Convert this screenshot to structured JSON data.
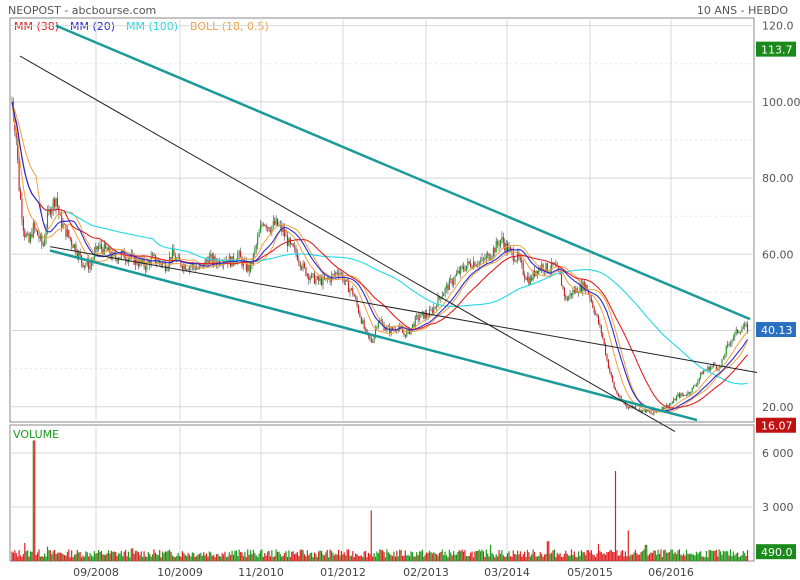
{
  "header": {
    "source": "NEOPOST - abcbourse.com",
    "period": "10 ANS - HEBDO"
  },
  "indicators": [
    {
      "label": "MM (38)",
      "color": "#e02020"
    },
    {
      "label": "MM (20)",
      "color": "#2a2ad0"
    },
    {
      "label": "MM (100)",
      "color": "#22d8e8"
    },
    {
      "label": "BOLL (18, 0.5)",
      "color": "#f0a040"
    }
  ],
  "badges": {
    "high": {
      "value": "113.7",
      "color": "#1a8a1a"
    },
    "last": {
      "value": "40.13",
      "color": "#2a70c0"
    },
    "low": {
      "value": "16.07",
      "color": "#c01010"
    },
    "volume": {
      "value": "490.0",
      "color": "#1a8a1a"
    }
  },
  "chart_data": [
    {
      "type": "candlestick",
      "title": "NEOPOST",
      "y_ticks": [
        "20.00",
        "40.00",
        "60.00",
        "80.00",
        "100.00",
        "120.0"
      ],
      "ylim": [
        16,
        122
      ],
      "x_ticks": [
        "09/2008",
        "10/2009",
        "11/2010",
        "01/2012",
        "02/2013",
        "03/2014",
        "05/2015",
        "06/2016"
      ],
      "grid": true,
      "anchors": [
        [
          0,
          107
        ],
        [
          6,
          113.7
        ],
        [
          11,
          102
        ],
        [
          16,
          92
        ],
        [
          19,
          78
        ],
        [
          24,
          66
        ],
        [
          29,
          63
        ],
        [
          33,
          67
        ],
        [
          38,
          65
        ],
        [
          43,
          62
        ],
        [
          47,
          69
        ],
        [
          50,
          72
        ],
        [
          56,
          75
        ],
        [
          60,
          69
        ],
        [
          64,
          67
        ],
        [
          70,
          64
        ],
        [
          75,
          62
        ],
        [
          82,
          58
        ],
        [
          90,
          57
        ],
        [
          98,
          62
        ],
        [
          106,
          61
        ],
        [
          114,
          59
        ],
        [
          122,
          60
        ],
        [
          130,
          59
        ],
        [
          138,
          58
        ],
        [
          146,
          57
        ],
        [
          152,
          59
        ],
        [
          159,
          58
        ],
        [
          166,
          57
        ],
        [
          172,
          60
        ],
        [
          178,
          58
        ],
        [
          186,
          57
        ],
        [
          193,
          57
        ],
        [
          200,
          56
        ],
        [
          208,
          59
        ],
        [
          216,
          58
        ],
        [
          224,
          59
        ],
        [
          232,
          58
        ],
        [
          238,
          60
        ],
        [
          244,
          57
        ],
        [
          250,
          56
        ],
        [
          256,
          62
        ],
        [
          263,
          69
        ],
        [
          270,
          67
        ],
        [
          276,
          68
        ],
        [
          283,
          66
        ],
        [
          290,
          62
        ],
        [
          297,
          60
        ],
        [
          304,
          56
        ],
        [
          311,
          54
        ],
        [
          318,
          53
        ],
        [
          325,
          53
        ],
        [
          332,
          54
        ],
        [
          339,
          56
        ],
        [
          346,
          52
        ],
        [
          353,
          50
        ],
        [
          360,
          44
        ],
        [
          366,
          39
        ],
        [
          372,
          37
        ],
        [
          378,
          43
        ],
        [
          384,
          41
        ],
        [
          390,
          40
        ],
        [
          397,
          41
        ],
        [
          404,
          39
        ],
        [
          410,
          40
        ],
        [
          416,
          43
        ],
        [
          422,
          44
        ],
        [
          428,
          44
        ],
        [
          434,
          46
        ],
        [
          440,
          49
        ],
        [
          446,
          51
        ],
        [
          452,
          53
        ],
        [
          458,
          55
        ],
        [
          466,
          57
        ],
        [
          474,
          58
        ],
        [
          482,
          58
        ],
        [
          490,
          60
        ],
        [
          496,
          62
        ],
        [
          501,
          64
        ],
        [
          506,
          62
        ],
        [
          512,
          60
        ],
        [
          518,
          59
        ],
        [
          524,
          55
        ],
        [
          530,
          53
        ],
        [
          536,
          56
        ],
        [
          542,
          57
        ],
        [
          548,
          56
        ],
        [
          554,
          57
        ],
        [
          560,
          54
        ],
        [
          566,
          48
        ],
        [
          572,
          50
        ],
        [
          578,
          51
        ],
        [
          585,
          52
        ],
        [
          590,
          49
        ],
        [
          596,
          44
        ],
        [
          602,
          39
        ],
        [
          608,
          31
        ],
        [
          614,
          25
        ],
        [
          620,
          22
        ],
        [
          627,
          20
        ],
        [
          634,
          20
        ],
        [
          640,
          19
        ],
        [
          646,
          19
        ],
        [
          652,
          18
        ],
        [
          658,
          19
        ],
        [
          665,
          20
        ],
        [
          672,
          21
        ],
        [
          678,
          23
        ],
        [
          684,
          23
        ],
        [
          690,
          24
        ],
        [
          696,
          26
        ],
        [
          702,
          29
        ],
        [
          708,
          30
        ],
        [
          714,
          31
        ],
        [
          720,
          30
        ],
        [
          726,
          35
        ],
        [
          732,
          38
        ],
        [
          738,
          40
        ],
        [
          744,
          41
        ],
        [
          750,
          40
        ]
      ],
      "moving_averages": [
        {
          "name": "MM (38)",
          "color": "#e02020"
        },
        {
          "name": "MM (20)",
          "color": "#2a2ad0"
        },
        {
          "name": "MM (100)",
          "color": "#22d8e8"
        },
        {
          "name": "BOLL (18, 0.5)",
          "color": "#f0a040"
        }
      ],
      "trendlines": [
        {
          "from": [
            56,
            120
          ],
          "to": [
            750,
            43
          ],
          "color": "#1a9a9a",
          "width": 2.5
        },
        {
          "from": [
            50,
            61
          ],
          "to": [
            697,
            16.5
          ],
          "color": "#1a9a9a",
          "width": 2.5
        },
        {
          "from": [
            20,
            112
          ],
          "to": [
            675,
            13.5
          ],
          "color": "#222222",
          "width": 1
        },
        {
          "from": [
            50,
            62
          ],
          "to": [
            757,
            29
          ],
          "color": "#222222",
          "width": 1
        }
      ]
    },
    {
      "type": "bar",
      "title": "VOLUME",
      "y_ticks": [
        "3 000",
        "6 000"
      ],
      "ylim": [
        0,
        7000
      ],
      "spikes": [
        [
          34,
          6700
        ],
        [
          371,
          2800
        ],
        [
          616,
          5000
        ],
        [
          25,
          1000
        ],
        [
          47,
          800
        ],
        [
          132,
          700
        ],
        [
          248,
          650
        ],
        [
          490,
          900
        ],
        [
          548,
          1100
        ],
        [
          598,
          950
        ],
        [
          628,
          1700
        ],
        [
          646,
          900
        ]
      ],
      "colors": {
        "up": "#1a9a1a",
        "down": "#e02020"
      }
    }
  ]
}
